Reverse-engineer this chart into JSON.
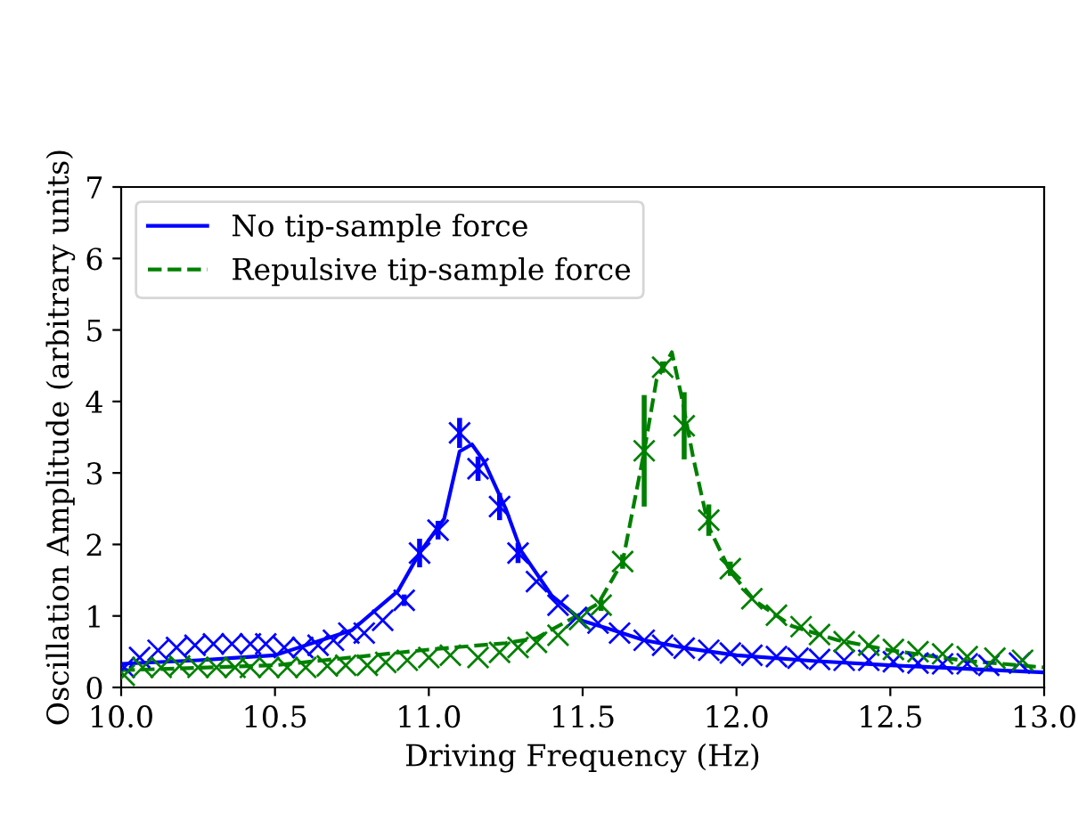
{
  "chart_data": {
    "type": "line",
    "xlabel": "Driving Frequency (Hz)",
    "ylabel": "Oscillation Amplitude (arbitrary units)",
    "xlim": [
      10,
      13
    ],
    "ylim": [
      0,
      7
    ],
    "xticks": [
      {
        "value": 10,
        "label": "10.0"
      },
      {
        "value": 10.5,
        "label": "10.5"
      },
      {
        "value": 11,
        "label": "11.0"
      },
      {
        "value": 11.5,
        "label": "11.5"
      },
      {
        "value": 12,
        "label": "12.0"
      },
      {
        "value": 12.5,
        "label": "12.5"
      },
      {
        "value": 13,
        "label": "13.0"
      }
    ],
    "yticks": [
      0,
      1,
      2,
      3,
      4,
      5,
      6,
      7
    ],
    "grid": false,
    "legend": "top left",
    "series": [
      {
        "name": "No tip-sample force",
        "color": "#0000ff",
        "line_style": "solid",
        "marker": "none",
        "x": [
          10.0,
          10.25,
          10.5,
          10.75,
          10.9,
          10.97,
          11.05,
          11.1,
          11.14,
          11.18,
          11.25,
          11.3,
          11.4,
          11.5,
          11.6,
          11.7,
          11.85,
          12.0,
          12.25,
          12.5,
          12.75,
          13.0
        ],
        "values": [
          0.33,
          0.38,
          0.45,
          0.8,
          1.35,
          1.88,
          2.36,
          3.3,
          3.4,
          3.16,
          2.5,
          1.91,
          1.28,
          0.93,
          0.8,
          0.66,
          0.54,
          0.45,
          0.37,
          0.31,
          0.26,
          0.21
        ]
      },
      {
        "name": "Repulsive tip-sample force",
        "color": "#008000",
        "line_style": "dashed",
        "marker": "none",
        "x": [
          10.0,
          10.5,
          11.0,
          11.25,
          11.35,
          11.48,
          11.55,
          11.63,
          11.7,
          11.74,
          11.79,
          11.82,
          11.86,
          11.91,
          11.98,
          12.06,
          12.18,
          12.33,
          12.5,
          12.73,
          13.0
        ],
        "values": [
          0.24,
          0.31,
          0.53,
          0.62,
          0.69,
          1.0,
          1.17,
          1.76,
          3.3,
          4.3,
          4.69,
          4.1,
          3.2,
          2.24,
          1.62,
          1.21,
          0.86,
          0.66,
          0.52,
          0.38,
          0.28
        ]
      },
      {
        "type": "scatter",
        "color": "#0000ff",
        "marker": "cross",
        "x": [
          10.01,
          10.06,
          10.12,
          10.18,
          10.24,
          10.3,
          10.36,
          10.42,
          10.47,
          10.53,
          10.59,
          10.64,
          10.69,
          10.74,
          10.79,
          10.85,
          10.92,
          10.97,
          11.03,
          11.1,
          11.16,
          11.23,
          11.29,
          11.35,
          11.42,
          11.48,
          11.55,
          11.62,
          11.7,
          11.76,
          11.83,
          11.91,
          11.98,
          12.05,
          12.13,
          12.2,
          12.27,
          12.35,
          12.43,
          12.51,
          12.59,
          12.67,
          12.75,
          12.82,
          12.92
        ],
        "values": [
          0.28,
          0.42,
          0.52,
          0.56,
          0.59,
          0.61,
          0.61,
          0.61,
          0.61,
          0.56,
          0.56,
          0.59,
          0.66,
          0.76,
          0.76,
          0.94,
          1.22,
          1.88,
          2.2,
          3.56,
          3.06,
          2.53,
          1.88,
          1.48,
          1.15,
          0.98,
          0.9,
          0.76,
          0.66,
          0.59,
          0.55,
          0.52,
          0.48,
          0.45,
          0.43,
          0.41,
          0.39,
          0.38,
          0.38,
          0.36,
          0.34,
          0.33,
          0.33,
          0.31,
          0.34
        ],
        "errors": [
          null,
          null,
          null,
          null,
          null,
          null,
          null,
          null,
          null,
          null,
          null,
          null,
          null,
          null,
          null,
          null,
          0.08,
          0.2,
          0.13,
          0.21,
          0.17,
          0.19,
          0.14,
          null,
          null,
          null,
          null,
          null,
          null,
          null,
          null,
          null,
          null,
          null,
          null,
          null,
          null,
          null,
          null,
          null,
          null,
          null,
          null,
          null,
          null
        ]
      },
      {
        "type": "scatter",
        "color": "#008000",
        "marker": "cross",
        "x": [
          10.01,
          10.07,
          10.13,
          10.19,
          10.25,
          10.31,
          10.37,
          10.42,
          10.48,
          10.54,
          10.6,
          10.67,
          10.73,
          10.8,
          10.86,
          10.93,
          11.0,
          11.07,
          11.16,
          11.23,
          11.29,
          11.35,
          11.42,
          11.49,
          11.56,
          11.63,
          11.7,
          11.76,
          11.83,
          11.91,
          11.98,
          12.05,
          12.13,
          12.21,
          12.27,
          12.35,
          12.43,
          12.51,
          12.59,
          12.67,
          12.75,
          12.84,
          12.93
        ],
        "values": [
          0.17,
          0.28,
          0.28,
          0.3,
          0.28,
          0.28,
          0.28,
          0.28,
          0.28,
          0.28,
          0.28,
          0.3,
          0.31,
          0.31,
          0.35,
          0.38,
          0.42,
          0.45,
          0.42,
          0.49,
          0.56,
          0.63,
          0.73,
          0.95,
          1.15,
          1.76,
          3.31,
          4.48,
          3.66,
          2.34,
          1.66,
          1.24,
          1.01,
          0.85,
          0.74,
          0.64,
          0.59,
          0.53,
          0.5,
          0.47,
          0.43,
          0.41,
          0.38
        ],
        "errors": [
          null,
          null,
          null,
          null,
          null,
          null,
          null,
          null,
          null,
          null,
          null,
          null,
          null,
          null,
          null,
          null,
          null,
          null,
          null,
          null,
          null,
          null,
          null,
          null,
          0.08,
          0.1,
          0.78,
          0.08,
          0.47,
          0.22,
          0.1,
          null,
          null,
          null,
          null,
          null,
          null,
          null,
          null,
          null,
          null,
          null,
          null
        ]
      }
    ]
  }
}
